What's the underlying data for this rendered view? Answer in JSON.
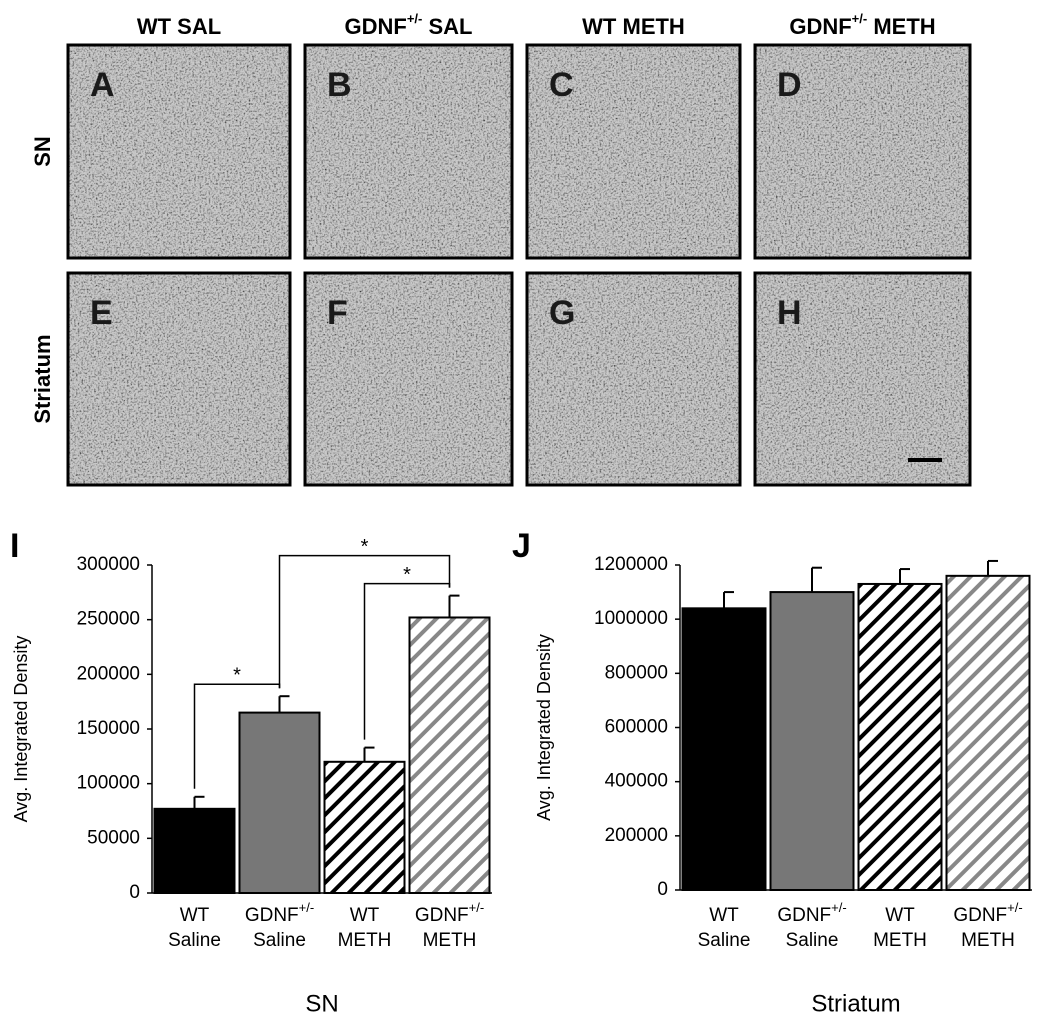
{
  "micrographs": {
    "columns": [
      {
        "text": "WT SAL"
      },
      {
        "text": "GDNF",
        "sup": "+/-",
        "tail": " SAL"
      },
      {
        "text": "WT METH"
      },
      {
        "text": "GDNF",
        "sup": "+/-",
        "tail": " METH"
      }
    ],
    "rows": [
      "SN",
      "Striatum"
    ],
    "panels": [
      "A",
      "B",
      "C",
      "D",
      "E",
      "F",
      "G",
      "H"
    ]
  },
  "chart_data": [
    {
      "type": "bar",
      "panel": "I",
      "xlabel": "SN",
      "ylabel": "Avg. Integrated Density",
      "categories": [
        [
          "WT",
          "Saline"
        ],
        [
          [
            "GDNF",
            "+/-"
          ],
          "Saline"
        ],
        [
          "WT",
          "METH"
        ],
        [
          [
            "GDNF",
            "+/-"
          ],
          "METH"
        ]
      ],
      "values": [
        77000,
        165000,
        120000,
        252000
      ],
      "errors": [
        11000,
        15000,
        13000,
        20000
      ],
      "colors": [
        "#000000",
        "#777777",
        "#000000",
        "#888888"
      ],
      "hatch": [
        false,
        false,
        true,
        true
      ],
      "ylim": [
        0,
        300000
      ],
      "yticks": [
        0,
        50000,
        100000,
        150000,
        200000,
        250000,
        300000
      ],
      "significance": [
        {
          "from": 0,
          "to": 1,
          "label": "*"
        },
        {
          "from": 2,
          "to": 3,
          "label": "*"
        },
        {
          "from": 1,
          "to": 3,
          "label": "*"
        }
      ]
    },
    {
      "type": "bar",
      "panel": "J",
      "xlabel": "Striatum",
      "ylabel": "Avg. Integrated Density",
      "categories": [
        [
          "WT",
          "Saline"
        ],
        [
          [
            "GDNF",
            "+/-"
          ],
          "Saline"
        ],
        [
          "WT",
          "METH"
        ],
        [
          [
            "GDNF",
            "+/-"
          ],
          "METH"
        ]
      ],
      "values": [
        1040000,
        1100000,
        1130000,
        1160000
      ],
      "errors": [
        60000,
        90000,
        55000,
        55000
      ],
      "colors": [
        "#000000",
        "#777777",
        "#000000",
        "#888888"
      ],
      "hatch": [
        false,
        false,
        true,
        true
      ],
      "ylim": [
        0,
        1200000
      ],
      "yticks": [
        0,
        200000,
        400000,
        600000,
        800000,
        1000000,
        1200000
      ]
    }
  ]
}
